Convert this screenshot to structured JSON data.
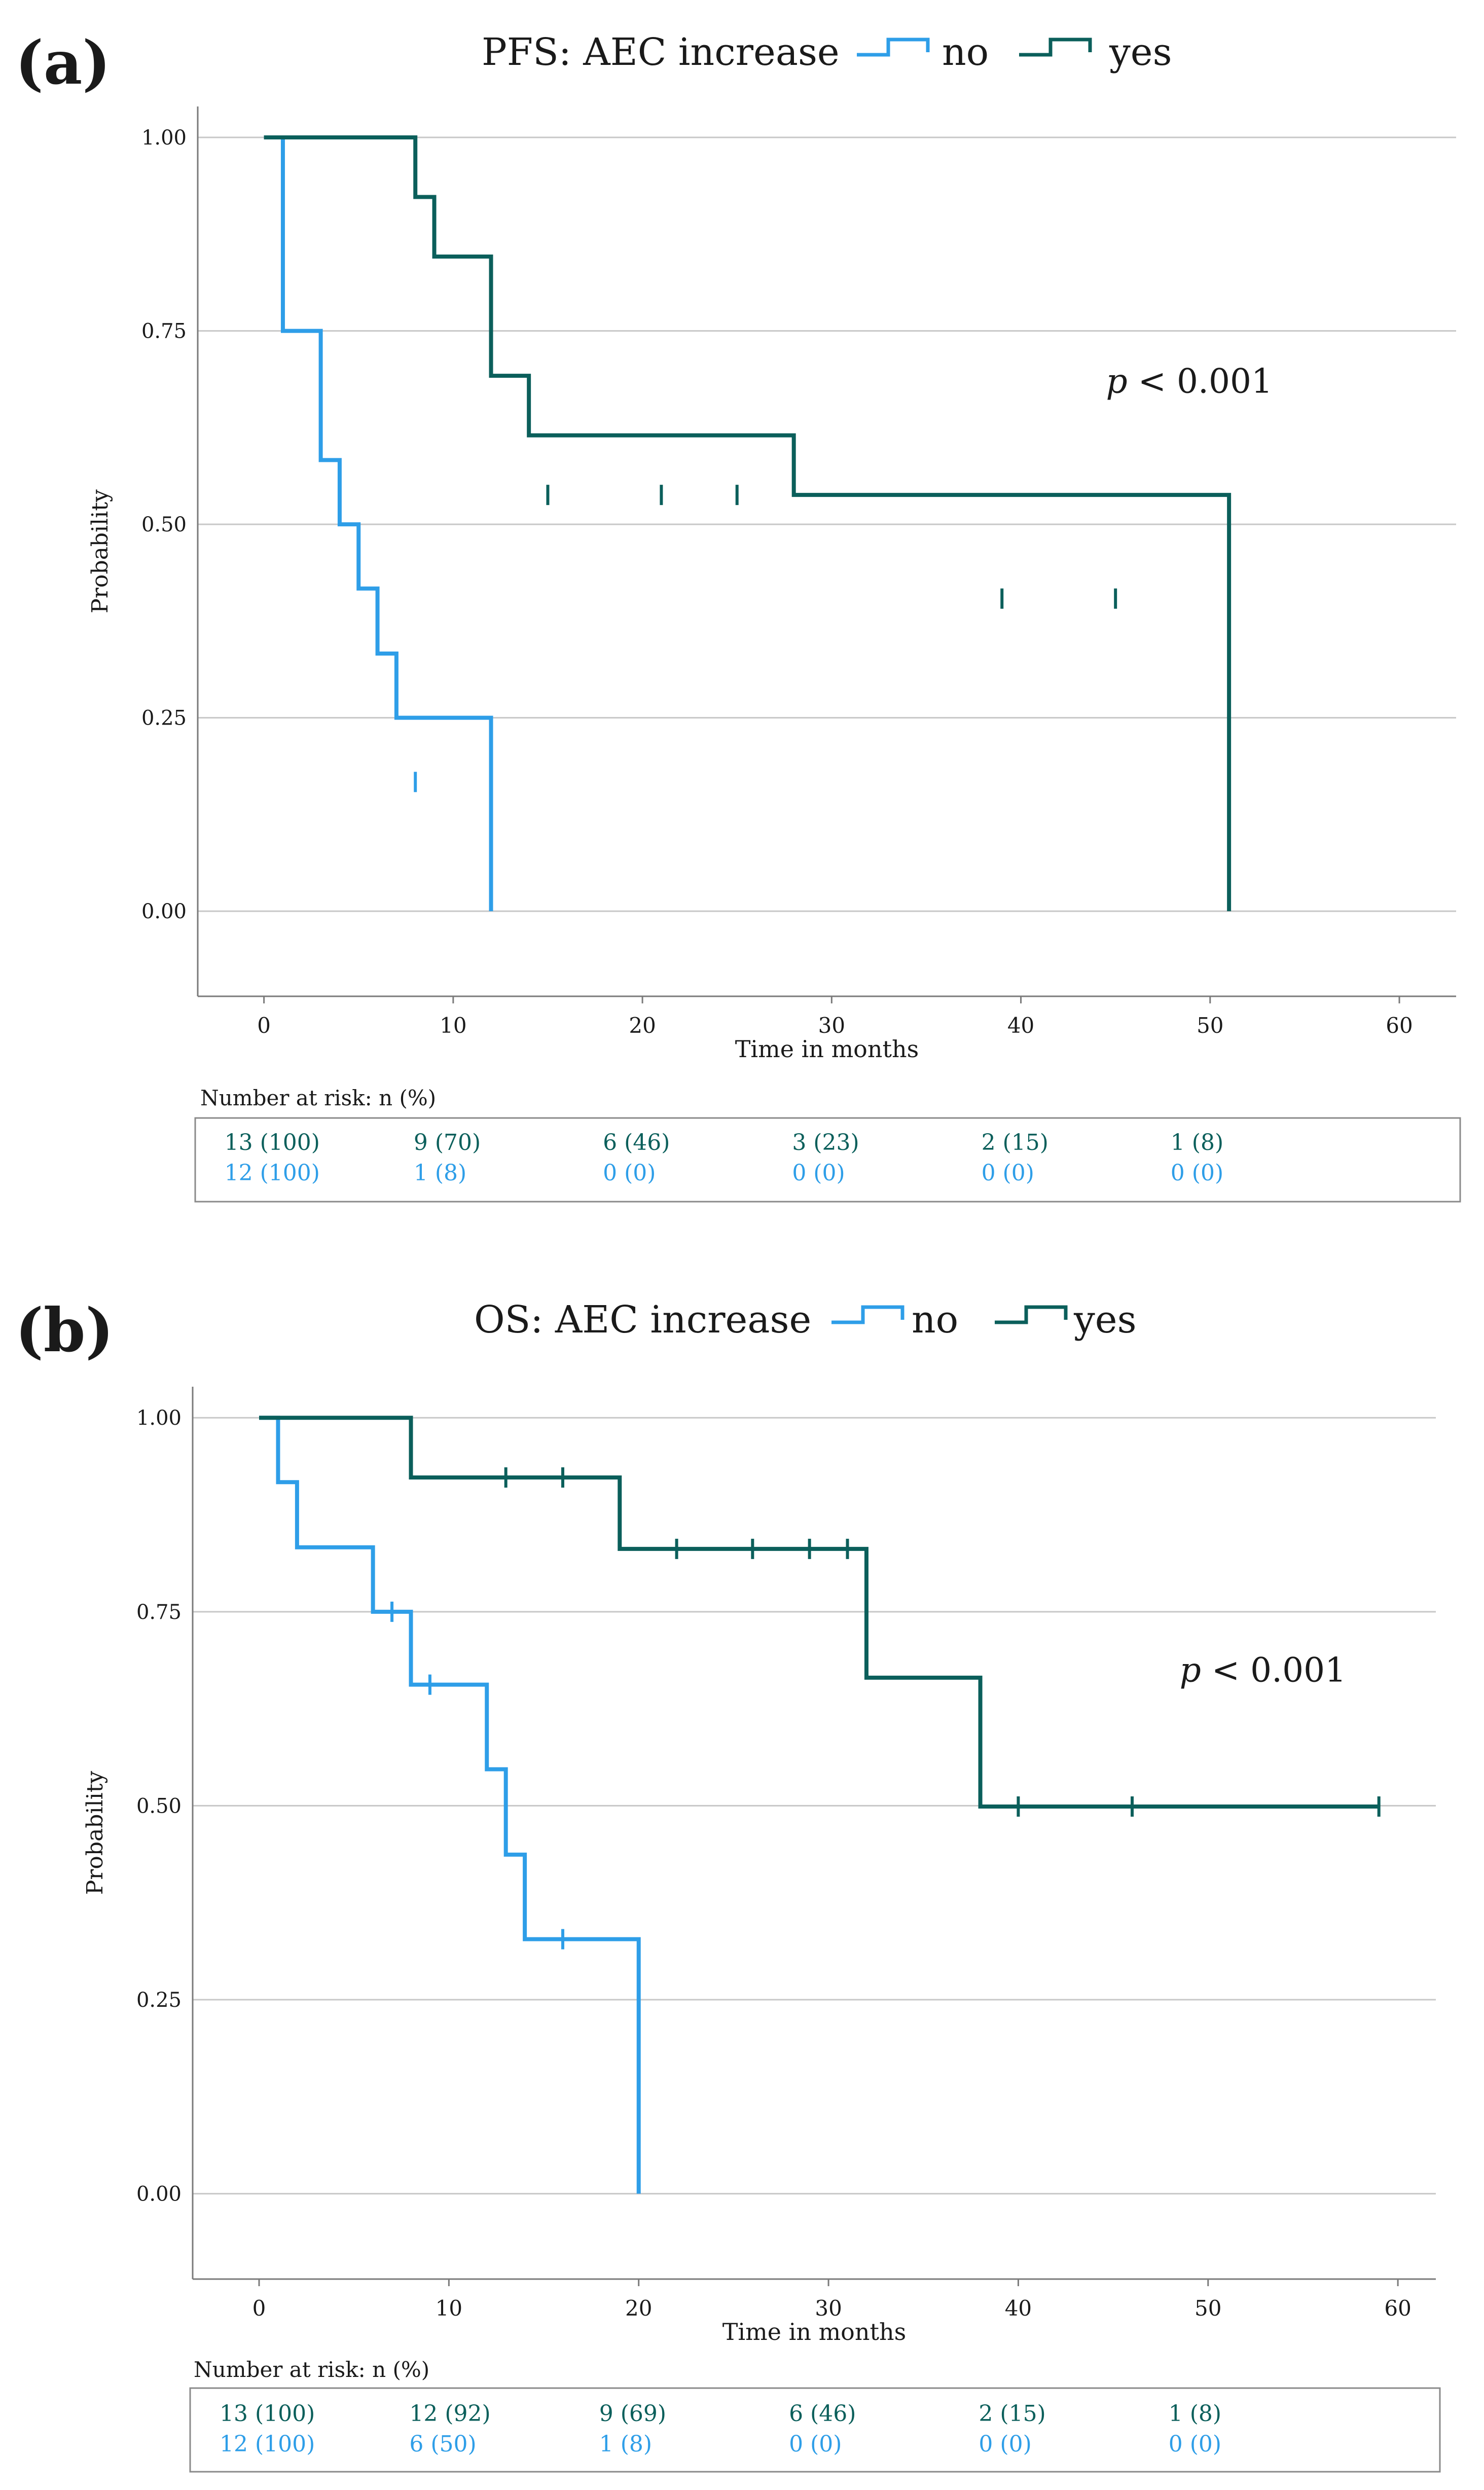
{
  "colors": {
    "no": "#2E9EE8",
    "yes": "#0B5F5B",
    "grid": "#C8C8C8",
    "axis": "#7A7A7A",
    "text": "#1A1A1A",
    "box": "#8A8A8A"
  },
  "chart_data": [
    {
      "type": "kaplan-meier",
      "panel_label": "(a)",
      "title": "PFS: AEC increase",
      "legend": [
        {
          "key": "no",
          "label": "no"
        },
        {
          "key": "yes",
          "label": "yes"
        }
      ],
      "ylabel": "Probability",
      "xlabel": "Time in months",
      "xlim": [
        -3.5,
        63
      ],
      "ylim": [
        -0.11,
        1.04
      ],
      "xticks": [
        0,
        10,
        20,
        30,
        40,
        50,
        60
      ],
      "xtick_labels": [
        "0",
        "10",
        "20",
        "30",
        "40",
        "50",
        "60"
      ],
      "yticks": [
        0,
        0.25,
        0.5,
        0.75,
        1.0
      ],
      "ytick_labels": [
        "0.00",
        "0.25",
        "0.50",
        "0.75",
        "1.00"
      ],
      "pvalue": {
        "symbol": "p",
        "text": " < 0.001",
        "x": 44.5,
        "y": 0.67
      },
      "series": [
        {
          "key": "no",
          "name": "no",
          "steps": [
            [
              0,
              1.0
            ],
            [
              1,
              0.75
            ],
            [
              3,
              0.583
            ],
            [
              4,
              0.5
            ],
            [
              5,
              0.417
            ],
            [
              6,
              0.333
            ],
            [
              7,
              0.25
            ],
            [
              12,
              0.167
            ]
          ],
          "end": [
            12,
            0.0
          ],
          "censored": [
            [
              8,
              0.167
            ]
          ]
        },
        {
          "key": "yes",
          "name": "yes",
          "steps": [
            [
              0,
              1.0
            ],
            [
              4,
              1.0
            ],
            [
              8,
              0.923
            ],
            [
              9,
              0.846
            ],
            [
              12,
              0.692
            ],
            [
              14,
              0.615
            ],
            [
              28,
              0.538
            ],
            [
              51,
              0.404
            ]
          ],
          "end": [
            51,
            0.0
          ],
          "censored": [
            [
              15,
              0.538
            ],
            [
              21,
              0.538
            ],
            [
              25,
              0.538
            ],
            [
              39,
              0.404
            ],
            [
              45,
              0.404
            ]
          ]
        }
      ],
      "risk_table": {
        "label": "Number at risk: n (%)",
        "times": [
          0,
          10,
          20,
          30,
          40,
          50
        ],
        "rows": [
          {
            "key": "yes",
            "values": [
              "13 (100)",
              "9 (70)",
              "6 (46)",
              "3 (23)",
              "2 (15)",
              "1 (8)"
            ]
          },
          {
            "key": "no",
            "values": [
              "12 (100)",
              "1 (8)",
              "0 (0)",
              "0 (0)",
              "0 (0)",
              "0 (0)"
            ]
          }
        ]
      }
    },
    {
      "type": "kaplan-meier",
      "panel_label": "(b)",
      "title": "OS: AEC increase",
      "legend": [
        {
          "key": "no",
          "label": "no"
        },
        {
          "key": "yes",
          "label": "yes"
        }
      ],
      "ylabel": "Probability",
      "xlabel": "Time in months",
      "xlim": [
        -3.5,
        62
      ],
      "ylim": [
        -0.11,
        1.04
      ],
      "xticks": [
        0,
        10,
        20,
        30,
        40,
        50,
        60
      ],
      "xtick_labels": [
        "0",
        "10",
        "20",
        "30",
        "40",
        "50",
        "60"
      ],
      "yticks": [
        0,
        0.25,
        0.5,
        0.75,
        1.0
      ],
      "ytick_labels": [
        "0.00",
        "0.25",
        "0.50",
        "0.75",
        "1.00"
      ],
      "pvalue": {
        "symbol": "p",
        "text": " < 0.001",
        "x": 48.5,
        "y": 0.66
      },
      "series": [
        {
          "key": "no",
          "name": "no",
          "steps": [
            [
              0,
              1.0
            ],
            [
              1,
              0.917
            ],
            [
              2,
              0.833
            ],
            [
              6,
              0.75
            ],
            [
              8,
              0.656
            ],
            [
              12,
              0.547
            ],
            [
              13,
              0.437
            ],
            [
              14,
              0.328
            ]
          ],
          "end": [
            20,
            0.0
          ],
          "censored": [
            [
              7,
              0.75
            ],
            [
              9,
              0.656
            ],
            [
              16,
              0.328
            ]
          ]
        },
        {
          "key": "yes",
          "name": "yes",
          "steps": [
            [
              0,
              1.0
            ],
            [
              8,
              0.923
            ],
            [
              19,
              0.831
            ],
            [
              32,
              0.665
            ],
            [
              38,
              0.499
            ]
          ],
          "end": [
            59,
            0.499
          ],
          "censored": [
            [
              13,
              0.923
            ],
            [
              16,
              0.923
            ],
            [
              22,
              0.831
            ],
            [
              26,
              0.831
            ],
            [
              29,
              0.831
            ],
            [
              31,
              0.831
            ],
            [
              40,
              0.499
            ],
            [
              46,
              0.499
            ],
            [
              59,
              0.499
            ]
          ]
        }
      ],
      "risk_table": {
        "label": "Number at risk: n (%)",
        "times": [
          0,
          10,
          20,
          30,
          40,
          50
        ],
        "rows": [
          {
            "key": "yes",
            "values": [
              "13 (100)",
              "12 (92)",
              "9 (69)",
              "6 (46)",
              "2 (15)",
              "1 (8)"
            ]
          },
          {
            "key": "no",
            "values": [
              "12 (100)",
              "6 (50)",
              "1 (8)",
              "0 (0)",
              "0 (0)",
              "0 (0)"
            ]
          }
        ]
      }
    }
  ]
}
